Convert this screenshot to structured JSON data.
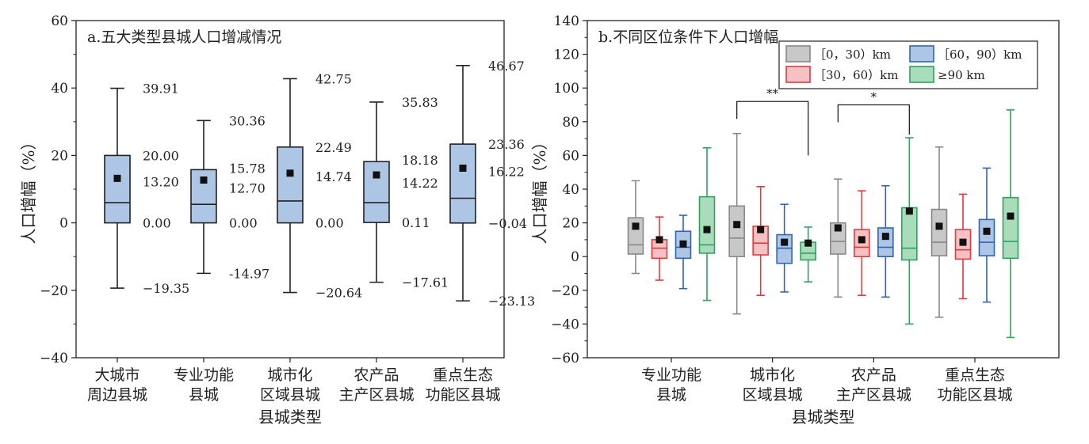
{
  "chart_data": [
    {
      "type": "box",
      "title": "a.五大类型县城人口增减情况",
      "xlabel": "县城类型",
      "ylabel": "人口增幅（%）",
      "ylim": [
        -40,
        60
      ],
      "yticks": [
        -40,
        -20,
        0,
        20,
        40,
        60
      ],
      "categories": [
        [
          "大城市",
          "周边县城"
        ],
        [
          "专业功能",
          "县城"
        ],
        [
          "城市化",
          "区域县城"
        ],
        [
          "农产品",
          "主产区县城"
        ],
        [
          "重点生态",
          "功能区县城"
        ]
      ],
      "box_color": "#adc6e5",
      "boxes": [
        {
          "min": -19.35,
          "q1": 0.0,
          "median": 6.0,
          "mean": 13.2,
          "q3": 20.0,
          "max": 39.91,
          "labels": {
            "max": "39.91",
            "q3": "20.00",
            "mean": "13.20",
            "q1": "0.00",
            "min": "−19.35"
          }
        },
        {
          "min": -14.97,
          "q1": 0.0,
          "median": 5.5,
          "mean": 12.7,
          "q3": 15.78,
          "max": 30.36,
          "labels": {
            "max": "30.36",
            "q3": "15.78",
            "mean": "12.70",
            "q1": "0.00",
            "min": "-14.97"
          }
        },
        {
          "min": -20.64,
          "q1": 0.0,
          "median": 6.5,
          "mean": 14.74,
          "q3": 22.49,
          "max": 42.75,
          "labels": {
            "max": "42.75",
            "q3": "22.49",
            "mean": "14.74",
            "q1": "0.00",
            "min": "−20.64"
          }
        },
        {
          "min": -17.61,
          "q1": 0.11,
          "median": 6.0,
          "mean": 14.22,
          "q3": 18.18,
          "max": 35.83,
          "labels": {
            "max": "35.83",
            "q3": "18.18",
            "mean": "14.22",
            "q1": "0.11",
            "min": "−17.61"
          }
        },
        {
          "min": -23.13,
          "q1": -0.04,
          "median": 7.3,
          "mean": 16.22,
          "q3": 23.36,
          "max": 46.67,
          "labels": {
            "max": "46.67",
            "q3": "23.36",
            "mean": "16.22",
            "q1": "−0.04",
            "min": "−23.13"
          }
        }
      ]
    },
    {
      "type": "box",
      "title": "b.不同区位条件下人口增幅",
      "xlabel": "县城类型",
      "ylabel": "人口增幅（%）",
      "ylim": [
        -60,
        140
      ],
      "yticks": [
        -60,
        -40,
        -20,
        0,
        20,
        40,
        60,
        80,
        100,
        120,
        140
      ],
      "categories": [
        [
          "专业功能",
          "县城"
        ],
        [
          "城市化",
          "区域县城"
        ],
        [
          "农产品",
          "主产区县城"
        ],
        [
          "重点生态",
          "功能区县城"
        ]
      ],
      "legend": [
        {
          "name": "［0，30）km",
          "fill": "#c8c8c8",
          "stroke": "#888888"
        },
        {
          "name": "［60，90）km",
          "fill": "#adc6e5",
          "stroke": "#2f65b3"
        },
        {
          "name": "［30，60）km",
          "fill": "#f5c2c3",
          "stroke": "#e3393f"
        },
        {
          "name": "≥90 km",
          "fill": "#a8dcbb",
          "stroke": "#2ea35c"
        }
      ],
      "series": [
        {
          "name": "［0，30）km",
          "fill": "#c8c8c8",
          "stroke": "#888888",
          "boxes": [
            {
              "min": -10,
              "q1": 1.5,
              "median": 7,
              "mean": 18,
              "q3": 23,
              "max": 45
            },
            {
              "min": -34,
              "q1": 0,
              "median": 11,
              "mean": 19,
              "q3": 30,
              "max": 73
            },
            {
              "min": -24,
              "q1": 1.5,
              "median": 9,
              "mean": 17,
              "q3": 20,
              "max": 46
            },
            {
              "min": -36,
              "q1": 0.5,
              "median": 8.5,
              "mean": 18,
              "q3": 28,
              "max": 65
            }
          ]
        },
        {
          "name": "［30，60）km",
          "fill": "#f5c2c3",
          "stroke": "#e3393f",
          "boxes": [
            {
              "min": -14,
              "q1": -1,
              "median": 5,
              "mean": 10,
              "q3": 10,
              "max": 23.5
            },
            {
              "min": -23,
              "q1": 1,
              "median": 8,
              "mean": 16,
              "q3": 18,
              "max": 41.5
            },
            {
              "min": -23,
              "q1": 0,
              "median": 5.5,
              "mean": 10,
              "q3": 16,
              "max": 39
            },
            {
              "min": -25,
              "q1": -1.5,
              "median": 4,
              "mean": 8.5,
              "q3": 16,
              "max": 37
            }
          ]
        },
        {
          "name": "［60，90）km",
          "fill": "#adc6e5",
          "stroke": "#2f65b3",
          "boxes": [
            {
              "min": -19,
              "q1": -1,
              "median": 5.5,
              "mean": 7.5,
              "q3": 15,
              "max": 24.5
            },
            {
              "min": -21,
              "q1": -4,
              "median": 5,
              "mean": 8.5,
              "q3": 13,
              "max": 31
            },
            {
              "min": -24,
              "q1": 0,
              "median": 5.5,
              "mean": 12,
              "q3": 17,
              "max": 42
            },
            {
              "min": -27,
              "q1": 0.5,
              "median": 8.5,
              "mean": 15,
              "q3": 22,
              "max": 52.5
            }
          ]
        },
        {
          "name": "≥90 km",
          "fill": "#a8dcbb",
          "stroke": "#2ea35c",
          "boxes": [
            {
              "min": -26,
              "q1": 2,
              "median": 7,
              "mean": 16,
              "q3": 35.5,
              "max": 64.5
            },
            {
              "min": -15,
              "q1": -2,
              "median": 2,
              "mean": 8,
              "q3": 8.5,
              "max": 17.5
            },
            {
              "min": -40,
              "q1": -2,
              "median": 5,
              "mean": 27,
              "q3": 29,
              "max": 70.5
            },
            {
              "min": -48,
              "q1": -1,
              "median": 9,
              "mean": 24,
              "q3": 35,
              "max": 87
            }
          ]
        }
      ],
      "significance": [
        {
          "text": "**",
          "group": 1,
          "from_series": 0,
          "to_series": 3,
          "y": 92
        },
        {
          "text": "*",
          "group": 2,
          "from_series": 0,
          "to_series": 3,
          "y": 90
        }
      ]
    }
  ]
}
